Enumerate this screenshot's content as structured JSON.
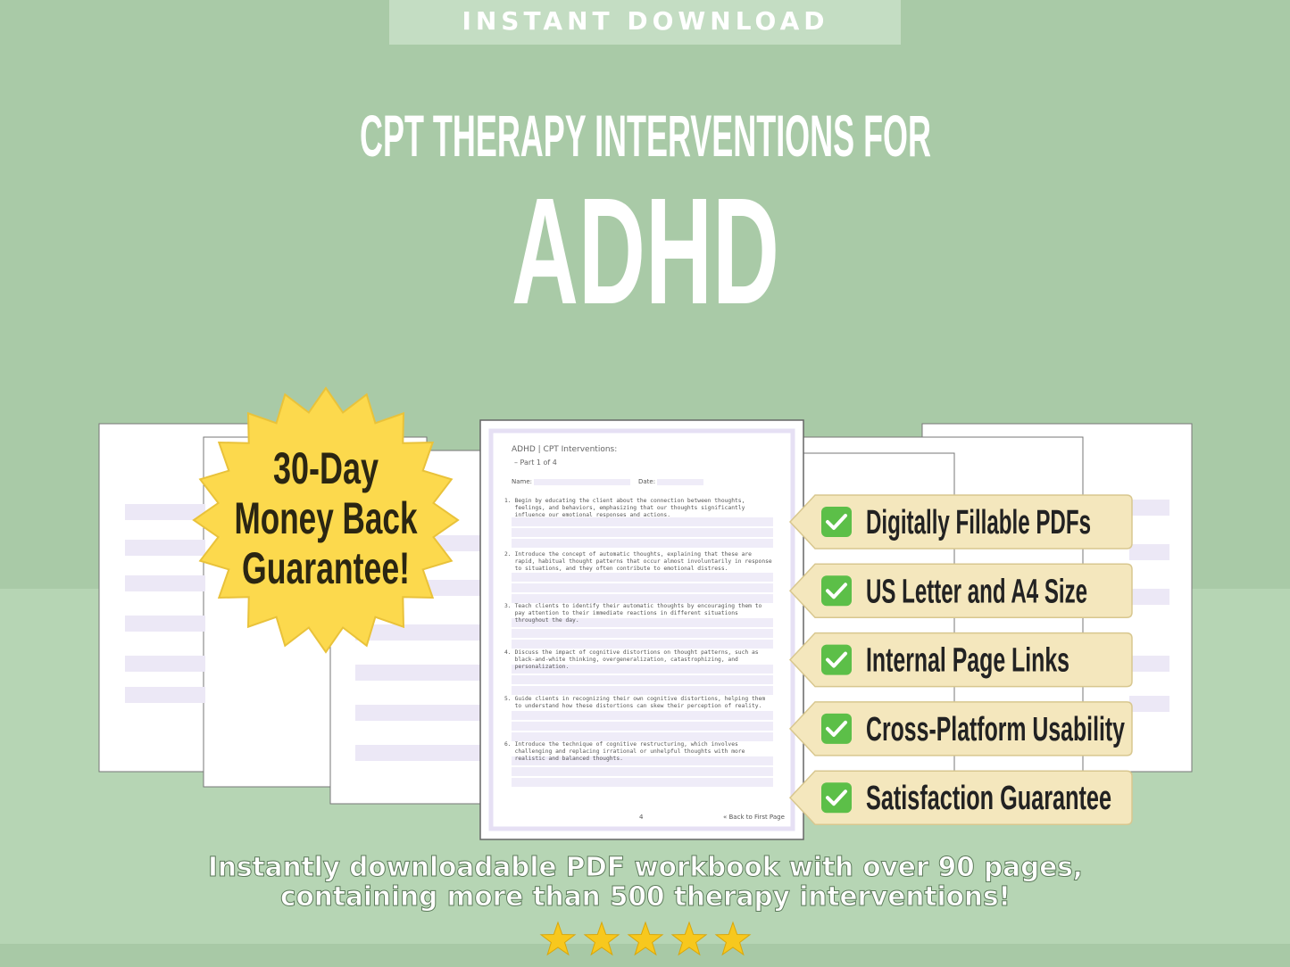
{
  "banner": "INSTANT DOWNLOAD",
  "title": {
    "line1": "CPT THERAPY INTERVENTIONS FOR",
    "line2": "ADHD"
  },
  "badge": [
    "30-Day",
    "Money Back",
    "Guarantee!"
  ],
  "features": [
    "Digitally Fillable PDFs",
    "US Letter and A4 Size",
    "Internal Page Links",
    "Cross-Platform Usability",
    "Satisfaction Guarantee"
  ],
  "page_preview": {
    "header": "ADHD | CPT Interventions:",
    "part": "– Part 1 of 4",
    "name_label": "Name:",
    "date_label": "Date:",
    "items": [
      {
        "number": "1.",
        "text": "Begin by educating the client about the connection between thoughts, feelings, and behaviors, emphasizing that our thoughts significantly influence our emotional responses and actions."
      },
      {
        "number": "2.",
        "text": "Introduce the concept of automatic thoughts, explaining that these are rapid, habitual thought patterns that occur almost involuntarily in response to situations, and they often contribute to emotional distress."
      },
      {
        "number": "3.",
        "text": "Teach clients to identify their automatic thoughts by encouraging them to pay attention to their immediate reactions in different situations throughout the day."
      },
      {
        "number": "4.",
        "text": "Discuss the impact of cognitive distortions on thought patterns, such as black-and-white thinking, overgeneralization, catastrophizing, and personalization."
      },
      {
        "number": "5.",
        "text": "Guide clients in recognizing their own cognitive distortions, helping them to understand how these distortions can skew their perception of reality."
      },
      {
        "number": "6.",
        "text": "Introduce the technique of cognitive restructuring, which involves challenging and replacing irrational or unhelpful thoughts with more realistic and balanced thoughts."
      }
    ],
    "page_number": "4",
    "back_link": "« Back to First Page"
  },
  "footer": [
    "Instantly downloadable PDF workbook with over 90 pages,",
    "containing more than 500 therapy interventions!"
  ]
}
